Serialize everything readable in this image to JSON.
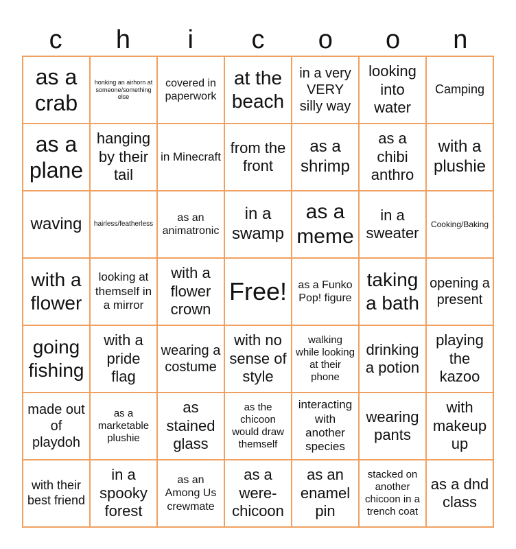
{
  "header": [
    "c",
    "h",
    "i",
    "c",
    "o",
    "o",
    "n"
  ],
  "accent_color": "#f0a060",
  "cells": [
    [
      "as a crab",
      "honking an airhorn at someone/something else",
      "covered in paperwork",
      "at the beach",
      "in a very VERY silly way",
      "looking into water",
      "Camping"
    ],
    [
      "as a plane",
      "hanging by their tail",
      "in Minecraft",
      "from the front",
      "as a shrimp",
      "as a chibi anthro",
      "with a plushie"
    ],
    [
      "waving",
      "hairless/featherless",
      "as an animatronic",
      "in a swamp",
      "as a meme",
      "in a sweater",
      "Cooking/Baking"
    ],
    [
      "with a flower",
      "looking at themself in a mirror",
      "with a flower crown",
      "Free!",
      "as a Funko Pop! figure",
      "taking a bath",
      "opening a present"
    ],
    [
      "going fishing",
      "with a pride flag",
      "wearing a costume",
      "with no sense of style",
      "walking while looking at their phone",
      "drinking a potion",
      "playing the kazoo"
    ],
    [
      "made out of playdoh",
      "as a marketable plushie",
      "as stained glass",
      "as the chicoon would draw themself",
      "interacting with another species",
      "wearing pants",
      "with makeup up"
    ],
    [
      "with their best friend",
      "in a spooky forest",
      "as an Among Us crewmate",
      "as a were-chicoon",
      "as an enamel pin",
      "stacked on another chicoon in a trench coat",
      "as a dnd class"
    ]
  ]
}
